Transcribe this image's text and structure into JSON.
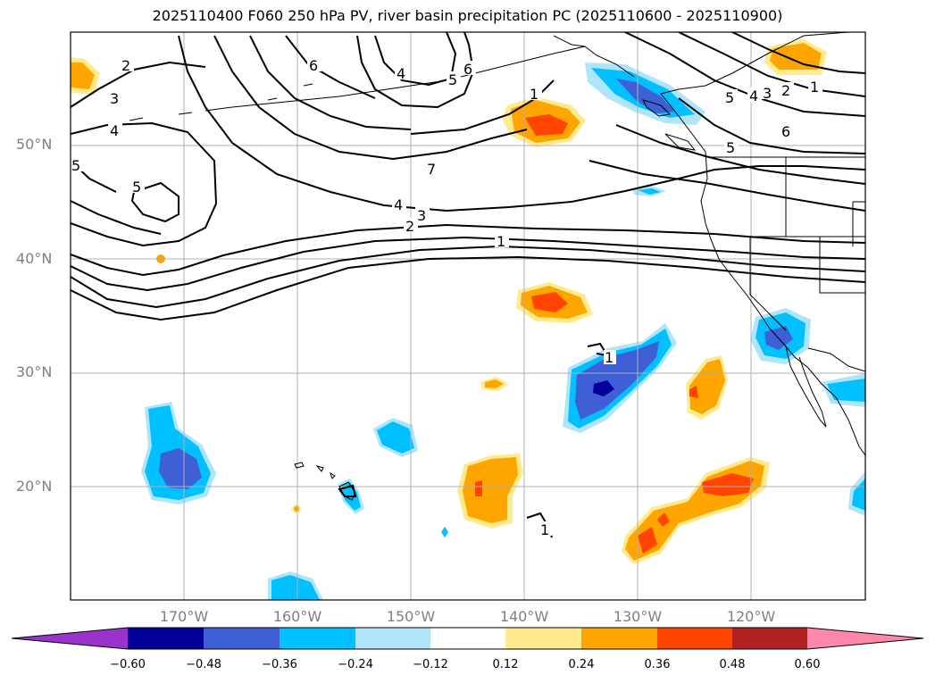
{
  "title": "2025110400 F060 250 hPa PV, river basin precipitation PC (2025110600 - 2025110900)",
  "map": {
    "lon_range": [
      -180,
      -110
    ],
    "lat_range": [
      10,
      60
    ],
    "lat_labels": [
      "50°N",
      "40°N",
      "30°N",
      "20°N"
    ],
    "lon_labels": [
      "170°W",
      "160°W",
      "150°W",
      "140°W",
      "130°W",
      "120°W"
    ],
    "pv_contour_labels": [
      "1",
      "2",
      "3",
      "4",
      "5",
      "6",
      "7"
    ],
    "land_color": "#ffffff",
    "grid_color": "#b0b0b0"
  },
  "colorbar": {
    "ticks": [
      "−0.60",
      "−0.48",
      "−0.36",
      "−0.24",
      "−0.12",
      "0.12",
      "0.24",
      "0.36",
      "0.48",
      "0.60"
    ],
    "colors": [
      "#9933cc",
      "#000099",
      "#3f5fd6",
      "#00c0ff",
      "#aee5fb",
      "#ffffff",
      "#ffeb8e",
      "#ffa500",
      "#ff4500",
      "#b22222",
      "#ff88aa"
    ]
  },
  "colors": {
    "dark_blue": "#000099",
    "mid_blue": "#3f5fd6",
    "cyan": "#00c0ff",
    "light_blue": "#aee5fb",
    "light_yellow": "#ffeb8e",
    "orange": "#ffa500",
    "red_orange": "#ff4500"
  }
}
